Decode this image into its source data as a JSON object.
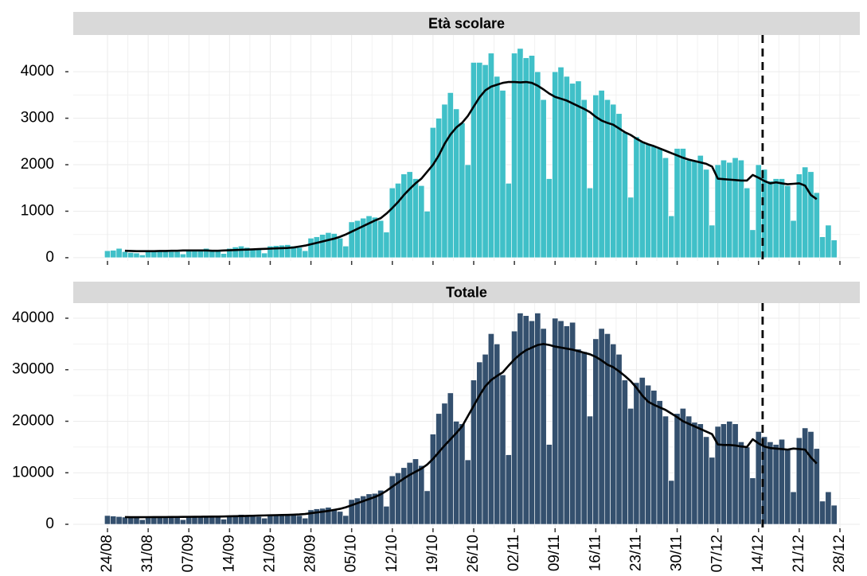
{
  "chart_data": [
    {
      "type": "bar",
      "title": "Età scolare",
      "values": [
        150,
        160,
        200,
        130,
        110,
        100,
        60,
        150,
        140,
        160,
        150,
        130,
        130,
        80,
        170,
        160,
        180,
        200,
        170,
        150,
        90,
        200,
        230,
        250,
        220,
        200,
        180,
        100,
        250,
        260,
        270,
        280,
        250,
        220,
        150,
        420,
        450,
        500,
        540,
        520,
        420,
        250,
        770,
        800,
        850,
        900,
        870,
        800,
        550,
        1500,
        1600,
        1800,
        1850,
        1700,
        1550,
        1000,
        2800,
        3000,
        3300,
        3550,
        3200,
        2900,
        2000,
        4200,
        4200,
        4150,
        4400,
        3900,
        3600,
        1600,
        4400,
        4500,
        4300,
        4350,
        4000,
        3400,
        1700,
        4000,
        4100,
        3900,
        3750,
        3800,
        3400,
        1500,
        3500,
        3600,
        3400,
        3300,
        3100,
        2700,
        1300,
        2600,
        2500,
        2450,
        2400,
        2350,
        2150,
        900,
        2350,
        2350,
        2100,
        2100,
        2200,
        1900,
        700,
        2000,
        2100,
        2050,
        2150,
        2100,
        1500,
        600,
        2000,
        1900,
        1650,
        1700,
        1700,
        1550,
        800,
        1800,
        1950,
        1850,
        1400,
        450,
        700,
        380,
        null
      ],
      "moving_average": [
        null,
        null,
        null,
        150,
        145,
        140,
        140,
        140,
        140,
        145,
        145,
        150,
        150,
        155,
        155,
        155,
        155,
        155,
        150,
        150,
        155,
        160,
        165,
        170,
        175,
        180,
        185,
        190,
        195,
        200,
        205,
        210,
        220,
        240,
        260,
        290,
        320,
        350,
        380,
        410,
        450,
        500,
        560,
        620,
        680,
        740,
        800,
        850,
        950,
        1070,
        1200,
        1350,
        1480,
        1600,
        1700,
        1850,
        2000,
        2200,
        2450,
        2650,
        2800,
        2900,
        3050,
        3250,
        3450,
        3600,
        3680,
        3720,
        3760,
        3780,
        3780,
        3770,
        3780,
        3760,
        3700,
        3620,
        3530,
        3460,
        3420,
        3380,
        3320,
        3260,
        3200,
        3130,
        3030,
        2950,
        2900,
        2860,
        2780,
        2700,
        2640,
        2560,
        2490,
        2440,
        2400,
        2350,
        2300,
        2250,
        2200,
        2150,
        2110,
        2080,
        2050,
        2020,
        1960,
        1700,
        1690,
        1680,
        1670,
        1660,
        1660,
        1780,
        1720,
        1650,
        1600,
        1620,
        1600,
        1580,
        1590,
        1600,
        1550,
        1350,
        1260,
        null,
        null,
        null,
        null
      ],
      "color": "#40c0c8",
      "line_color": "#000000",
      "ylim": [
        -70,
        4790
      ],
      "yticks": [
        0,
        1000,
        2000,
        3000,
        4000
      ],
      "grid": true,
      "vline_index": 112.7
    },
    {
      "type": "bar",
      "title": "Totale",
      "categories": [
        "24/08",
        null,
        null,
        null,
        null,
        null,
        null,
        "31/08",
        null,
        null,
        null,
        null,
        null,
        null,
        "07/09",
        null,
        null,
        null,
        null,
        null,
        null,
        "14/09",
        null,
        null,
        null,
        null,
        null,
        null,
        "21/09",
        null,
        null,
        null,
        null,
        null,
        null,
        "28/09",
        null,
        null,
        null,
        null,
        null,
        null,
        "05/10",
        null,
        null,
        null,
        null,
        null,
        null,
        "12/10",
        null,
        null,
        null,
        null,
        null,
        null,
        "19/10",
        null,
        null,
        null,
        null,
        null,
        null,
        "26/10",
        null,
        null,
        null,
        null,
        null,
        null,
        "02/11",
        null,
        null,
        null,
        null,
        null,
        null,
        "09/11",
        null,
        null,
        null,
        null,
        null,
        null,
        "16/11",
        null,
        null,
        null,
        null,
        null,
        null,
        "23/11",
        null,
        null,
        null,
        null,
        null,
        null,
        "30/11",
        null,
        null,
        null,
        null,
        null,
        null,
        "07/12",
        null,
        null,
        null,
        null,
        null,
        null,
        "14/12",
        null,
        null,
        null,
        null,
        null,
        null,
        "21/12",
        null,
        null,
        null,
        null,
        null,
        null,
        "28/12"
      ],
      "values": [
        1700,
        1600,
        1500,
        1400,
        1300,
        1300,
        900,
        1400,
        1500,
        1400,
        1400,
        1300,
        1300,
        900,
        1500,
        1600,
        1600,
        1500,
        1500,
        1400,
        1000,
        1600,
        1800,
        1900,
        1700,
        1700,
        1500,
        1200,
        1800,
        1900,
        1900,
        2000,
        1800,
        1700,
        1200,
        2800,
        3000,
        3100,
        3300,
        3000,
        2500,
        1700,
        4800,
        5100,
        5500,
        5900,
        6000,
        6600,
        3500,
        9400,
        10000,
        11000,
        12000,
        12700,
        11400,
        6500,
        17500,
        21500,
        23500,
        25500,
        20000,
        19500,
        12500,
        28000,
        31500,
        33000,
        37000,
        35000,
        29000,
        13500,
        37500,
        41000,
        40500,
        39500,
        41000,
        38000,
        15500,
        40000,
        39500,
        38500,
        39200,
        34000,
        33500,
        21000,
        36000,
        38000,
        37000,
        35000,
        33000,
        28000,
        22500,
        27500,
        28500,
        27000,
        26000,
        24000,
        21000,
        8500,
        21500,
        22500,
        21000,
        19800,
        19500,
        17000,
        13000,
        19000,
        19500,
        20000,
        19500,
        16000,
        15000,
        9000,
        18000,
        17000,
        16000,
        15500,
        16500,
        14500,
        6300,
        16800,
        18700,
        18000,
        14700,
        4500,
        6300,
        3700,
        null
      ],
      "moving_average": [
        null,
        null,
        null,
        1400,
        1380,
        1380,
        1380,
        1390,
        1400,
        1400,
        1410,
        1420,
        1430,
        1440,
        1450,
        1460,
        1470,
        1480,
        1490,
        1500,
        1520,
        1550,
        1580,
        1600,
        1630,
        1660,
        1690,
        1720,
        1750,
        1780,
        1800,
        1830,
        1870,
        1920,
        2000,
        2150,
        2300,
        2450,
        2600,
        2800,
        3000,
        3300,
        3700,
        4100,
        4500,
        4900,
        5300,
        5800,
        6500,
        7300,
        8100,
        8900,
        9600,
        10200,
        10800,
        11600,
        12700,
        14000,
        15300,
        16500,
        17700,
        19000,
        21000,
        23000,
        25000,
        26800,
        28000,
        28800,
        29500,
        30800,
        32000,
        33000,
        33800,
        34300,
        34800,
        35000,
        34800,
        34500,
        34300,
        34100,
        33900,
        33600,
        33300,
        33000,
        32500,
        31800,
        31000,
        30500,
        29700,
        28800,
        27800,
        26500,
        25000,
        23800,
        23200,
        22700,
        22200,
        21500,
        20800,
        20000,
        19500,
        19000,
        18500,
        18000,
        17500,
        15500,
        15400,
        15400,
        15300,
        15100,
        15000,
        16500,
        15700,
        15100,
        14800,
        14700,
        14600,
        14500,
        14700,
        14600,
        14500,
        13000,
        11800,
        null,
        null,
        null,
        null
      ],
      "color": "#34506e",
      "line_color": "#000000",
      "ylim": [
        -770,
        42930
      ],
      "yticks": [
        0,
        10000,
        20000,
        30000,
        40000
      ],
      "grid": true,
      "vline_index": 112.7
    }
  ]
}
